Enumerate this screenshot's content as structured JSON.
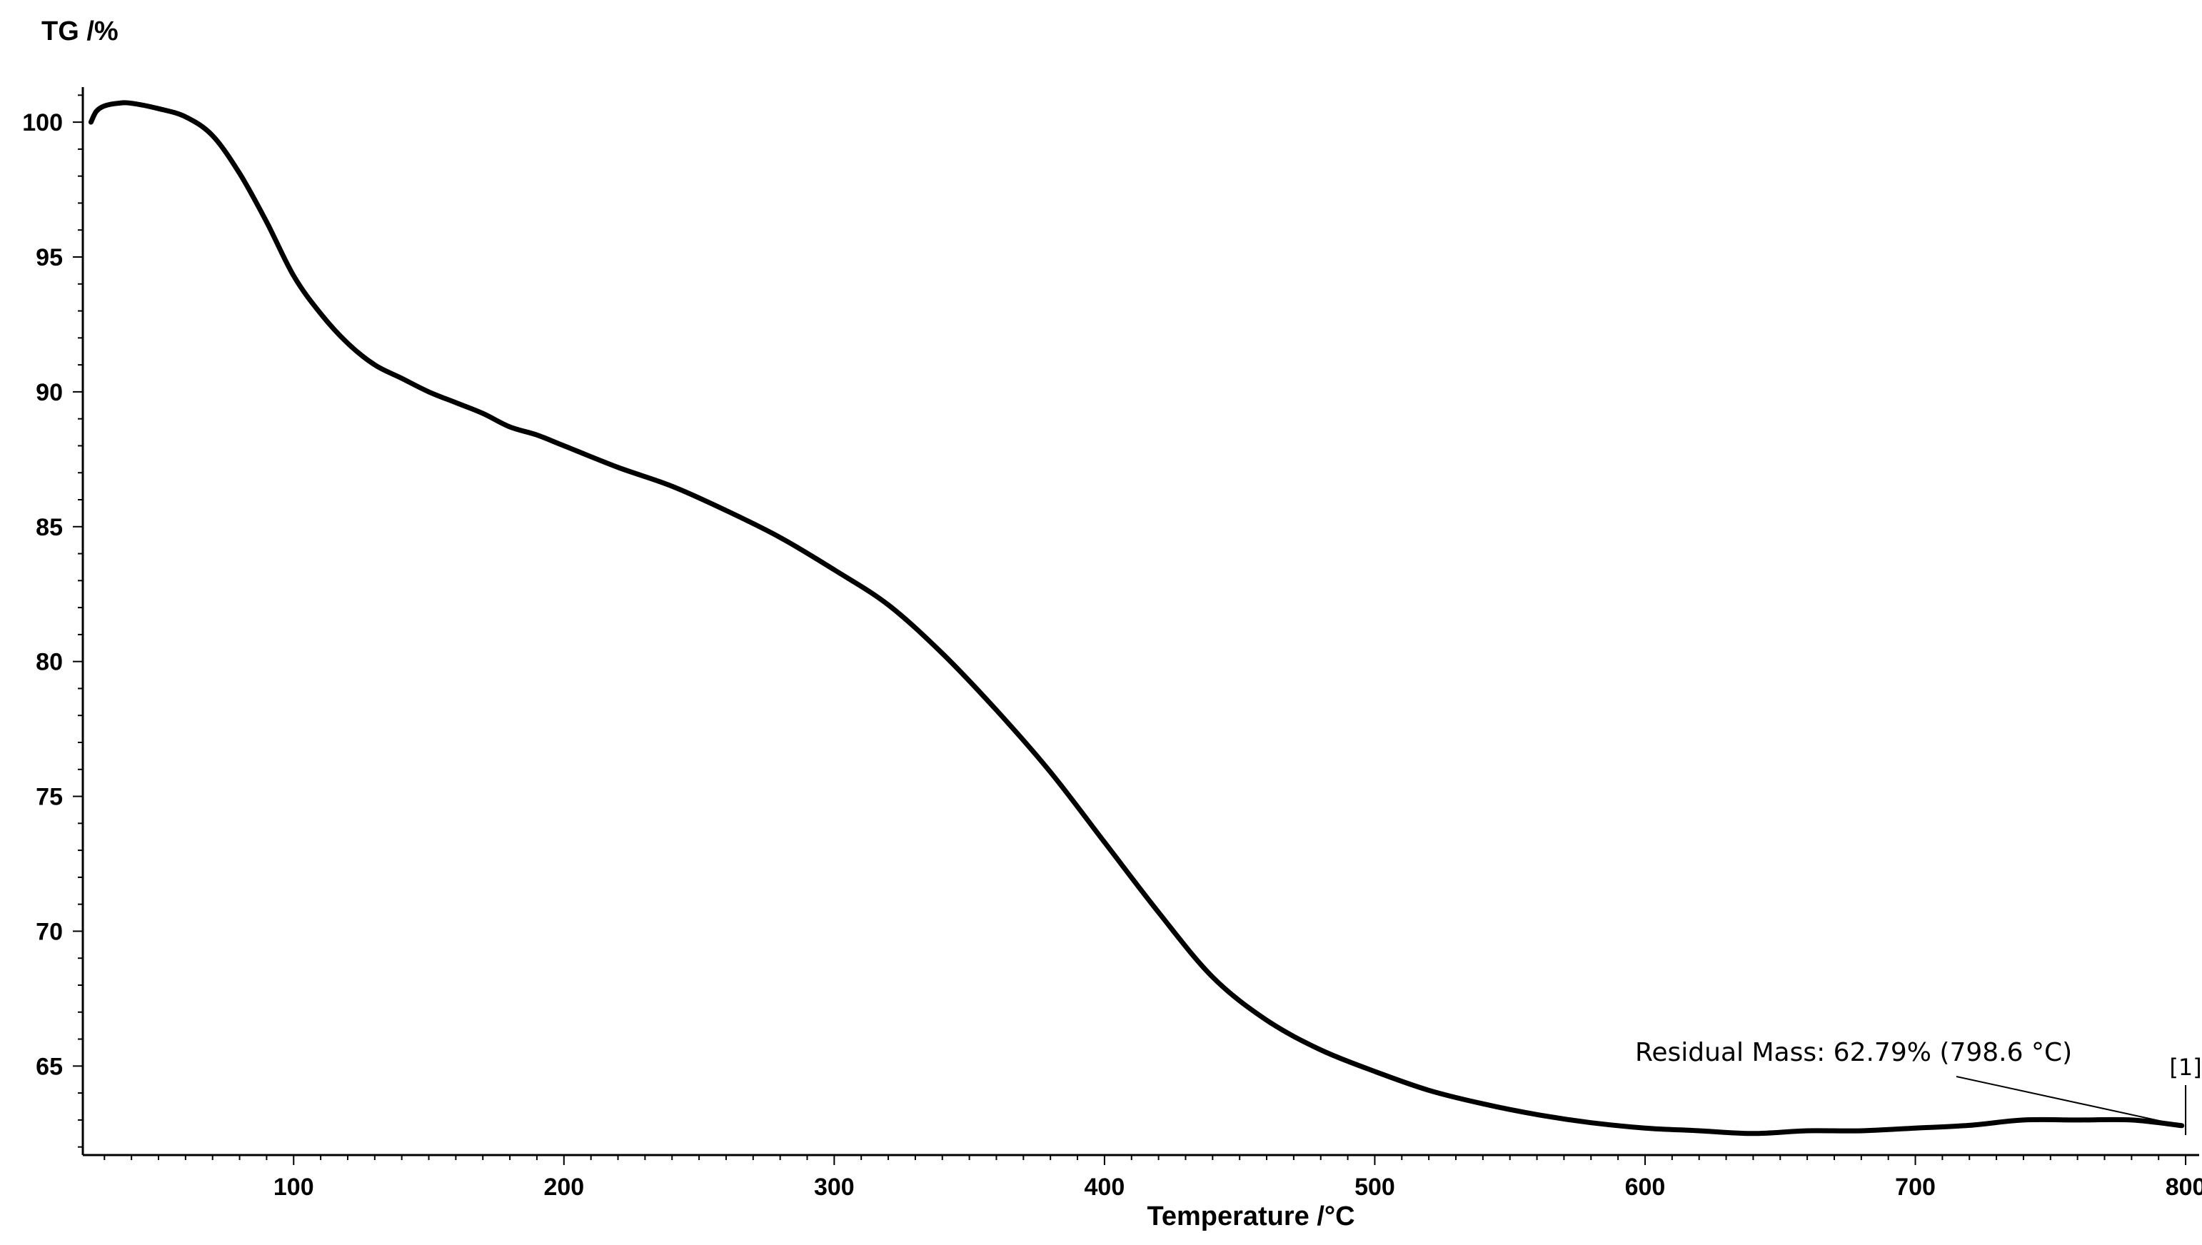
{
  "chart_data": {
    "type": "line",
    "title": "",
    "xlabel": "Temperature /°C",
    "ylabel": "TG /%",
    "xlim": [
      22,
      805
    ],
    "ylim": [
      61.7,
      101.3
    ],
    "x_ticks": [
      100,
      200,
      300,
      400,
      500,
      600,
      700,
      800
    ],
    "y_ticks": [
      65,
      70,
      75,
      80,
      85,
      90,
      95,
      100
    ],
    "grid": false,
    "series": [
      {
        "color": "#000000",
        "x": [
          25,
          27,
          30,
          35,
          40,
          50,
          60,
          70,
          80,
          90,
          100,
          110,
          120,
          130,
          140,
          150,
          160,
          170,
          180,
          190,
          200,
          220,
          240,
          260,
          280,
          300,
          320,
          340,
          360,
          380,
          400,
          420,
          440,
          460,
          480,
          500,
          520,
          540,
          560,
          580,
          600,
          620,
          640,
          660,
          680,
          700,
          720,
          740,
          760,
          780,
          798.6
        ],
        "y": [
          100.0,
          100.4,
          100.6,
          100.7,
          100.7,
          100.5,
          100.2,
          99.5,
          98.1,
          96.3,
          94.3,
          92.9,
          91.8,
          91.0,
          90.5,
          90.0,
          89.6,
          89.2,
          88.7,
          88.4,
          88.0,
          87.2,
          86.5,
          85.6,
          84.6,
          83.4,
          82.1,
          80.3,
          78.2,
          75.9,
          73.3,
          70.7,
          68.3,
          66.7,
          65.6,
          64.8,
          64.1,
          63.6,
          63.2,
          62.9,
          62.7,
          62.6,
          62.5,
          62.6,
          62.6,
          62.7,
          62.8,
          63.0,
          63.0,
          63.0,
          62.79
        ]
      }
    ],
    "annotations": [
      {
        "text": "Residual Mass: 62.79% (798.6 °C)",
        "x": 798.6,
        "y": 62.79
      },
      {
        "text": "[1]",
        "x": 800,
        "y": 62.79
      }
    ]
  }
}
